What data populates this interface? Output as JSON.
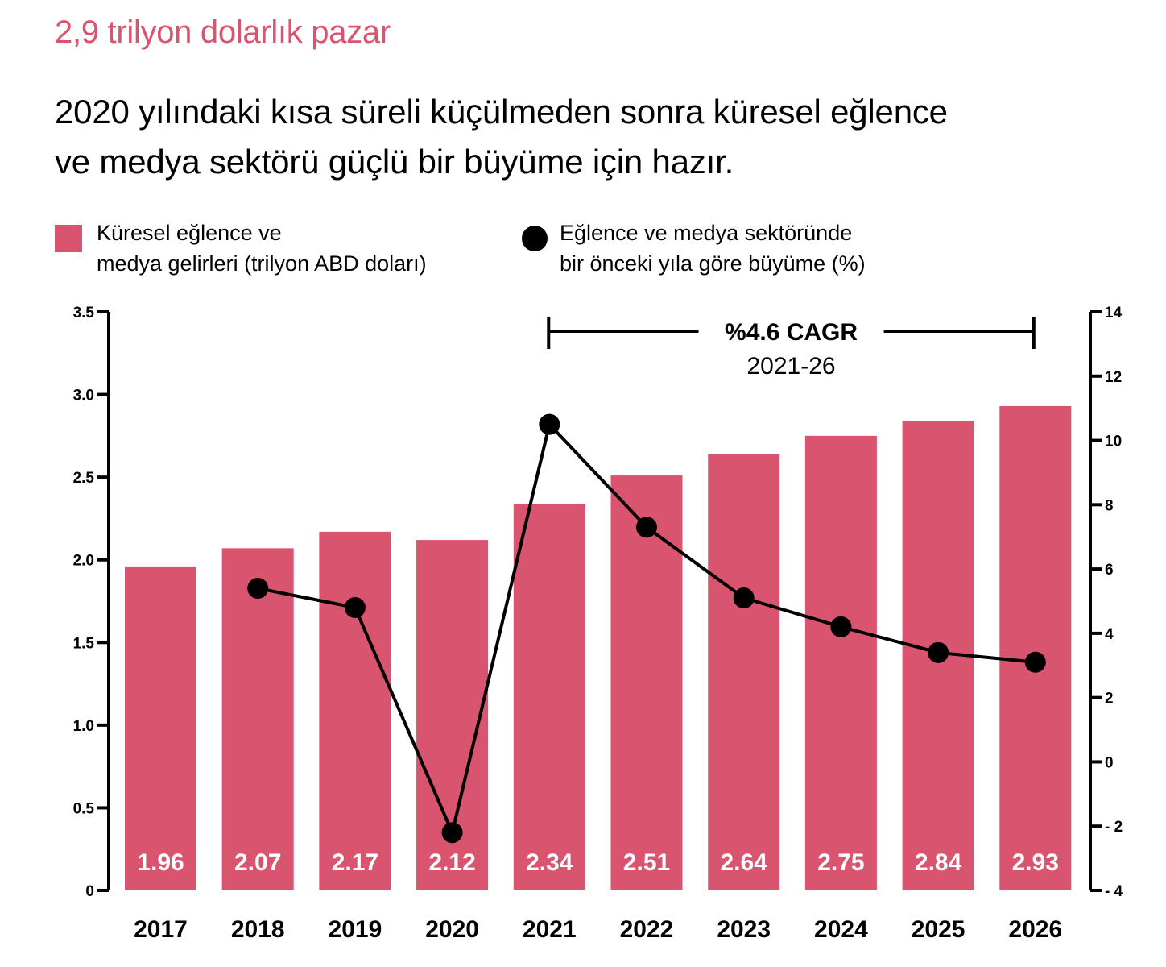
{
  "kicker": "2,9 trilyon dolarlık pazar",
  "headline": {
    "line1": "2020 yılındaki kısa süreli küçülmeden sonra küresel eğlence",
    "line2": "ve medya sektörü güçlü bir büyüme için hazır."
  },
  "legend": {
    "bar": {
      "line1": "Küresel eğlence ve",
      "line2": "medya gelirleri (trilyon ABD doları)",
      "color": "#d9546e",
      "icon": "square-swatch-icon"
    },
    "line": {
      "line1": "Eğlence ve medya sektöründe",
      "line2": "bir önceki yıla göre büyüme (%)",
      "color": "#000000",
      "icon": "circle-marker-icon"
    }
  },
  "annotation": {
    "title": "%4.6 CAGR",
    "subtitle": "2021-26",
    "from": "2021",
    "to": "2026"
  },
  "colors": {
    "bar": "#d9546e",
    "line": "#000000",
    "bar_label": "#ffffff"
  },
  "chart_data": {
    "type": "bar",
    "title": "2,9 trilyon dolarlık pazar",
    "subtitle": "2020 yılındaki kısa süreli küçülmeden sonra küresel eğlence ve medya sektörü güçlü bir büyüme için hazır.",
    "categories": [
      "2017",
      "2018",
      "2019",
      "2020",
      "2021",
      "2022",
      "2023",
      "2024",
      "2025",
      "2026"
    ],
    "series": [
      {
        "name": "Küresel eğlence ve medya gelirleri (trilyon ABD doları)",
        "type": "bar",
        "axis": "left",
        "values": [
          1.96,
          2.07,
          2.17,
          2.12,
          2.34,
          2.51,
          2.64,
          2.75,
          2.84,
          2.93
        ]
      },
      {
        "name": "Eğlence ve medya sektöründe bir önceki yıla göre büyüme (%)",
        "type": "line",
        "axis": "right",
        "values": [
          null,
          5.4,
          4.8,
          -2.2,
          10.5,
          7.3,
          5.1,
          4.2,
          3.4,
          3.1
        ]
      }
    ],
    "y_left": {
      "ylim": [
        0,
        3.5
      ],
      "ticks": [
        "0",
        "0.5",
        "1.0",
        "1.5",
        "2.0",
        "2.5",
        "3.0",
        "3.5"
      ]
    },
    "y_right": {
      "ylim": [
        -4,
        14
      ],
      "ticks": [
        "- 4",
        "- 2",
        "0",
        "2",
        "4",
        "6",
        "8",
        "10",
        "12",
        "14"
      ]
    },
    "xlabel": "",
    "ylabel": "",
    "grid": false,
    "legend_position": "top",
    "annotations": [
      {
        "text": "%4.6 CAGR",
        "subtext": "2021-26",
        "span": [
          "2021",
          "2026"
        ]
      }
    ]
  }
}
